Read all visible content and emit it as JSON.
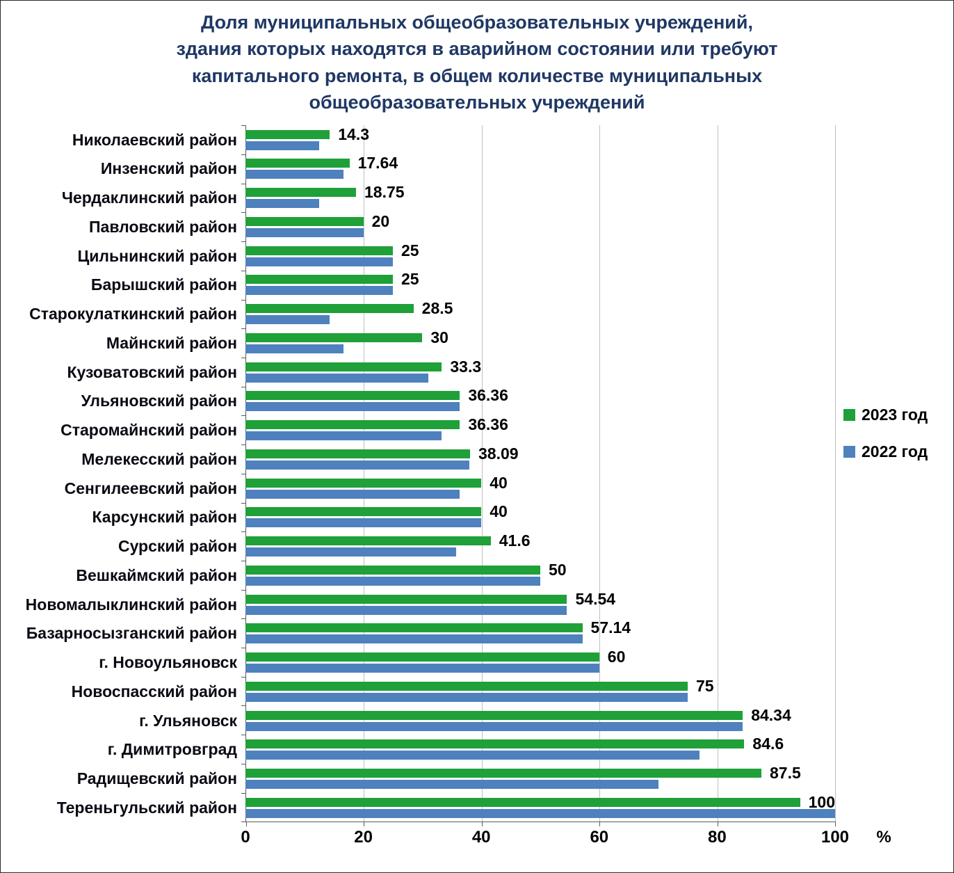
{
  "chart_data": {
    "type": "bar",
    "orientation": "horizontal",
    "title_lines": [
      "Доля муниципальных общеобразовательных учреждений,",
      "здания которых находятся в аварийном состоянии или требуют",
      "капитального ремонта, в общем количестве муниципальных",
      "общеобразовательных учреждений"
    ],
    "categories": [
      "Николаевский район",
      "Инзенский район",
      "Чердаклинский район",
      "Павловский район",
      "Цильнинский район",
      "Барышский район",
      "Старокулаткинский район",
      "Майнский район",
      "Кузоватовский район",
      "Ульяновский район",
      "Старомайнский район",
      "Мелекесский район",
      "Сенгилеевский район",
      "Карсунский район",
      "Сурский район",
      "Вешкаймский район",
      "Новомалыклинский район",
      "Базарносызганский район",
      "г. Новоульяновск",
      "Новоспасский район",
      "г. Ульяновск",
      "г. Димитровград",
      "Радищевский район",
      "Тереньгульский район"
    ],
    "series": [
      {
        "name": "2023 год",
        "color": "#1FA038",
        "values": [
          14.3,
          17.64,
          18.75,
          20,
          25,
          25,
          28.5,
          30,
          33.3,
          36.36,
          36.36,
          38.09,
          40,
          40,
          41.6,
          50,
          54.54,
          57.14,
          60,
          75,
          84.34,
          84.6,
          87.5,
          100
        ]
      },
      {
        "name": "2022 год",
        "color": "#4E81BD",
        "values": [
          12.5,
          16.6,
          12.5,
          20,
          25,
          25,
          14.3,
          16.6,
          31,
          36.36,
          33.3,
          38,
          36.36,
          40,
          35.7,
          50,
          54.5,
          57.14,
          60,
          75,
          84.3,
          77,
          70,
          100
        ]
      }
    ],
    "value_labels": [
      "14.3",
      "17.64",
      "18.75",
      "20",
      "25",
      "25",
      "28.5",
      "30",
      "33.3",
      "36.36",
      "36.36",
      "38.09",
      "40",
      "40",
      "41.6",
      "50",
      "54.54",
      "57.14",
      "60",
      "75",
      "84.34",
      "84.6",
      "87.5",
      "100"
    ],
    "xlim": [
      0,
      100
    ],
    "x_ticks": [
      0,
      20,
      40,
      60,
      80,
      100
    ],
    "x_unit": "%",
    "grid": true,
    "legend_position": "right",
    "colors": {
      "title": "#1F3864",
      "axis": "#595959",
      "gridline": "#BFBFBF",
      "green_2023": "#1FA038",
      "blue_2022": "#4E81BD"
    }
  }
}
